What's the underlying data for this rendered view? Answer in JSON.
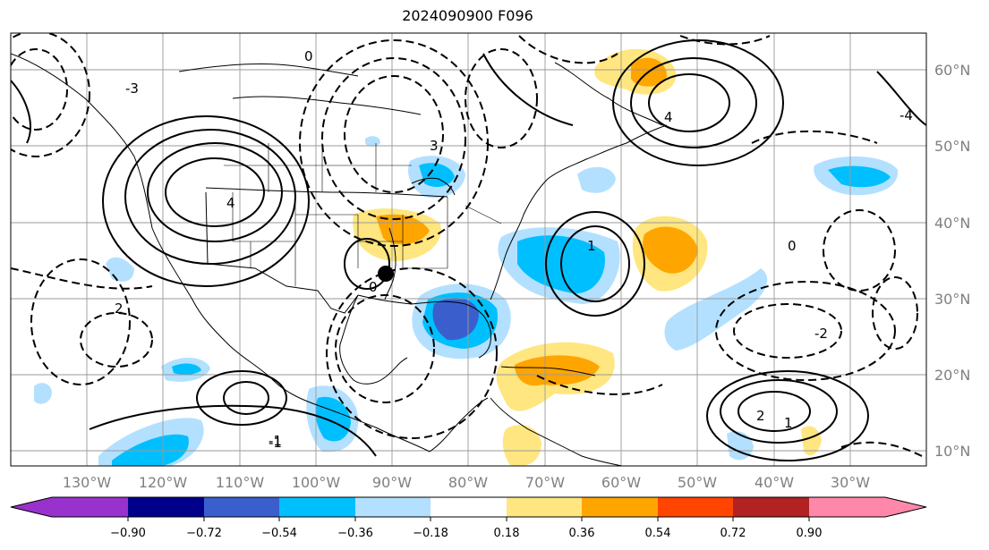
{
  "title": "2024090900 F096",
  "map": {
    "lon_ticks": [
      "130°W",
      "120°W",
      "110°W",
      "100°W",
      "90°W",
      "80°W",
      "70°W",
      "60°W",
      "50°W",
      "40°W",
      "30°W"
    ],
    "lat_ticks": [
      "60°N",
      "50°N",
      "40°N",
      "30°N",
      "20°N",
      "10°N"
    ],
    "contour_labels": [
      "0",
      "1",
      "2",
      "3",
      "4",
      "-2",
      "-1",
      "0",
      "-3",
      "1",
      "2",
      "4",
      "-4",
      "0",
      "-1"
    ],
    "marker": "storm-center-dot"
  },
  "colorbar": {
    "ticks": [
      "−0.90",
      "−0.72",
      "−0.54",
      "−0.36",
      "−0.18",
      "0.18",
      "0.36",
      "0.54",
      "0.72",
      "0.90"
    ],
    "colors": [
      "#9932cc",
      "#00008b",
      "#3a5fcd",
      "#00bfff",
      "#b3e0ff",
      "#ffffff",
      "#ffe680",
      "#ffa500",
      "#ff4500",
      "#b22222",
      "#ff88aa"
    ]
  }
}
